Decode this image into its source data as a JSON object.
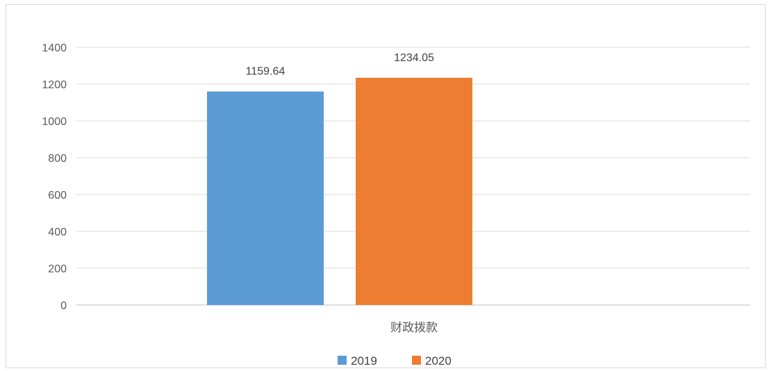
{
  "chart_data": {
    "type": "bar",
    "categories": [
      "财政拨款"
    ],
    "series": [
      {
        "name": "2019",
        "values": [
          1159.64
        ],
        "color": "#5B9BD5",
        "label": "1159.64"
      },
      {
        "name": "2020",
        "values": [
          1234.05
        ],
        "color": "#ED7D31",
        "label": "1234.05"
      }
    ],
    "ylim": [
      0,
      1400
    ],
    "yticks": [
      0,
      200,
      400,
      600,
      800,
      1000,
      1200,
      1400
    ],
    "grid": true,
    "legend_position": "bottom",
    "gridline_color": "#d9d9d9",
    "axis_color": "#bfbfbf"
  }
}
